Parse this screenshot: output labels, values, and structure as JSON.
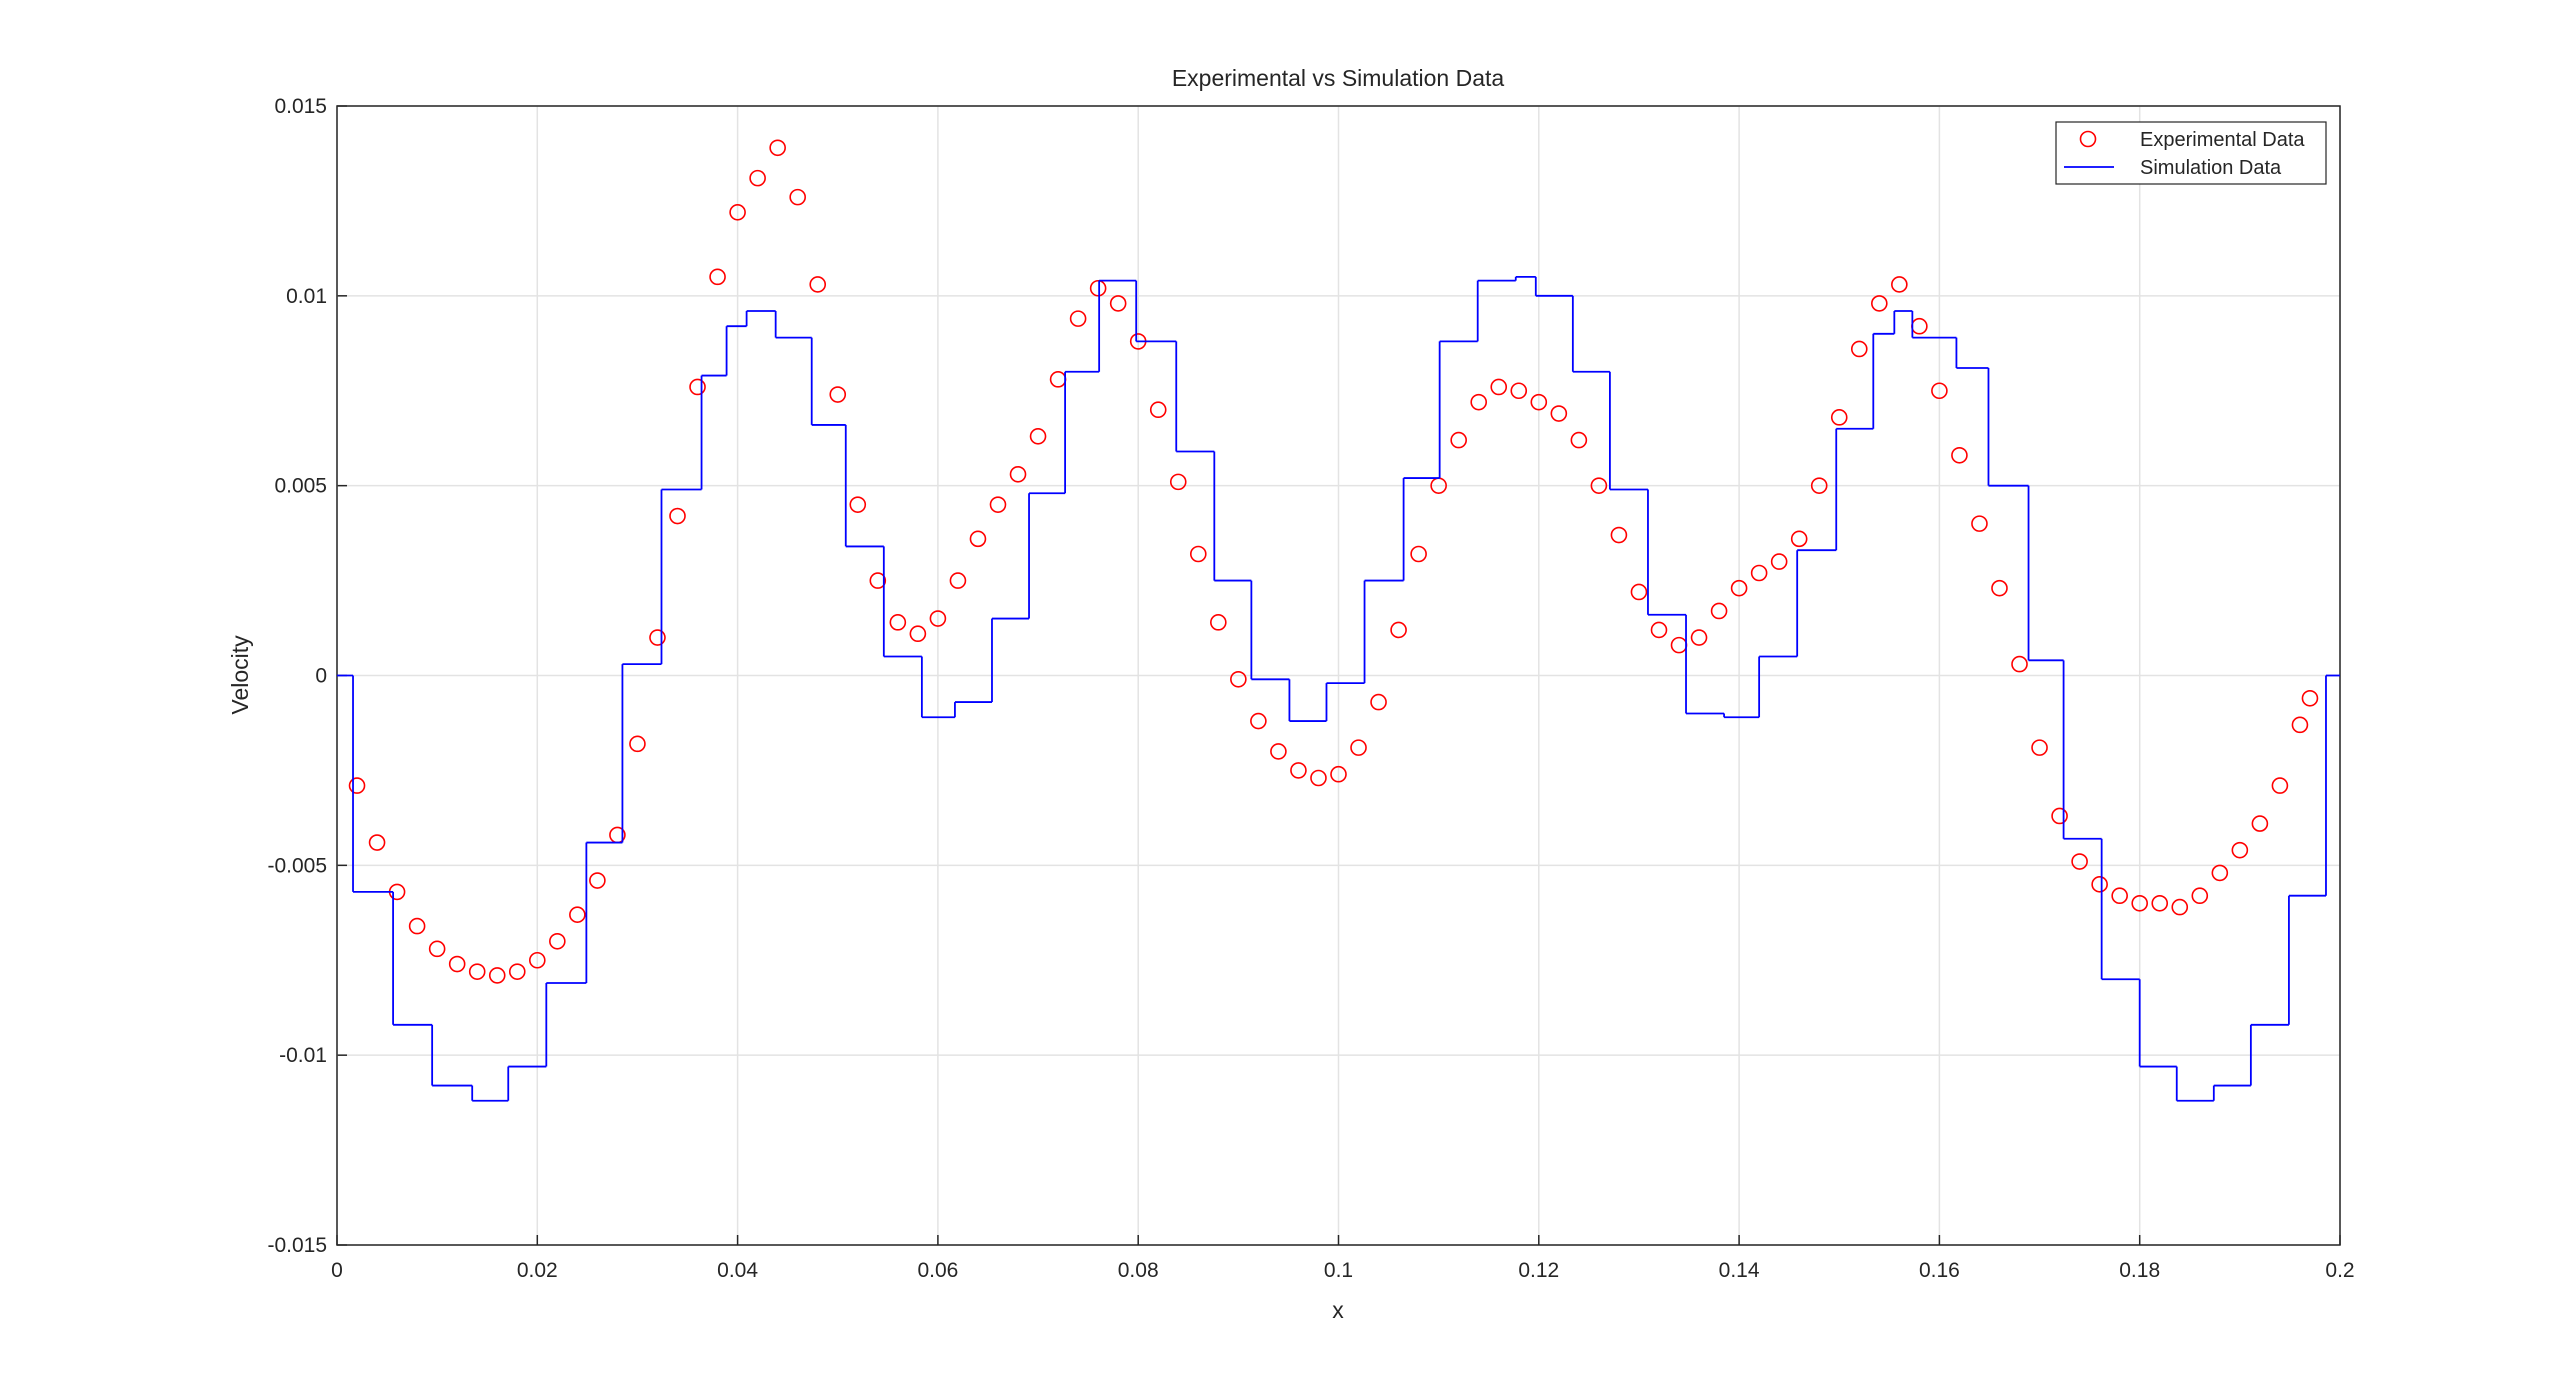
{
  "chart_data": {
    "type": "line",
    "title": "Experimental vs Simulation Data",
    "xlabel": "x",
    "ylabel": "Velocity",
    "xlim": [
      0,
      0.2
    ],
    "ylim": [
      -0.015,
      0.015
    ],
    "xticks": [
      0,
      0.02,
      0.04,
      0.06,
      0.08,
      0.1,
      0.12,
      0.14,
      0.16,
      0.18,
      0.2
    ],
    "yticks": [
      -0.015,
      -0.01,
      -0.005,
      0,
      0.005,
      0.01,
      0.015
    ],
    "grid": true,
    "legend": "northeast",
    "series": [
      {
        "name": "Experimental Data",
        "color": "#ff0000",
        "marker": "circle",
        "x": [
          0.002,
          0.004,
          0.006,
          0.008,
          0.01,
          0.012,
          0.014,
          0.016,
          0.018,
          0.02,
          0.022,
          0.024,
          0.026,
          0.028,
          0.03,
          0.032,
          0.034,
          0.036,
          0.038,
          0.04,
          0.042,
          0.044,
          0.046,
          0.048,
          0.05,
          0.052,
          0.054,
          0.056,
          0.058,
          0.06,
          0.062,
          0.064,
          0.066,
          0.068,
          0.07,
          0.072,
          0.074,
          0.076,
          0.078,
          0.08,
          0.082,
          0.084,
          0.086,
          0.088,
          0.09,
          0.092,
          0.094,
          0.096,
          0.098,
          0.1,
          0.102,
          0.104,
          0.106,
          0.108,
          0.11,
          0.112,
          0.114,
          0.116,
          0.118,
          0.12,
          0.122,
          0.124,
          0.126,
          0.128,
          0.13,
          0.132,
          0.134,
          0.136,
          0.138,
          0.14,
          0.142,
          0.144,
          0.146,
          0.148,
          0.15,
          0.152,
          0.154,
          0.156,
          0.158,
          0.16,
          0.162,
          0.164,
          0.166,
          0.168,
          0.17,
          0.172,
          0.174,
          0.176,
          0.178,
          0.18,
          0.182,
          0.184,
          0.186,
          0.188,
          0.19,
          0.192,
          0.194,
          0.196,
          0.197
        ],
        "values": [
          -0.0029,
          -0.0044,
          -0.0057,
          -0.0066,
          -0.0072,
          -0.0076,
          -0.0078,
          -0.0079,
          -0.0078,
          -0.0075,
          -0.007,
          -0.0063,
          -0.0054,
          -0.0042,
          -0.0018,
          0.001,
          0.0042,
          0.0076,
          0.0105,
          0.0122,
          0.0131,
          0.0139,
          0.0126,
          0.0103,
          0.0074,
          0.0045,
          0.0025,
          0.0014,
          0.0011,
          0.0015,
          0.0025,
          0.0036,
          0.0045,
          0.0053,
          0.0063,
          0.0078,
          0.0094,
          0.0102,
          0.0098,
          0.0088,
          0.007,
          0.0051,
          0.0032,
          0.0014,
          -0.0001,
          -0.0012,
          -0.002,
          -0.0025,
          -0.0027,
          -0.0026,
          -0.0019,
          -0.0007,
          0.0012,
          0.0032,
          0.005,
          0.0062,
          0.0072,
          0.0076,
          0.0075,
          0.0072,
          0.0069,
          0.0062,
          0.005,
          0.0037,
          0.0022,
          0.0012,
          0.0008,
          0.001,
          0.0017,
          0.0023,
          0.0027,
          0.003,
          0.0036,
          0.005,
          0.0068,
          0.0086,
          0.0098,
          0.0103,
          0.0092,
          0.0075,
          0.0058,
          0.004,
          0.0023,
          0.0003,
          -0.0019,
          -0.0037,
          -0.0049,
          -0.0055,
          -0.0058,
          -0.006,
          -0.006,
          -0.0061,
          -0.0058,
          -0.0052,
          -0.0046,
          -0.0039,
          -0.0029,
          -0.0013,
          -0.0006
        ]
      },
      {
        "name": "Simulation Data",
        "color": "#0000ff",
        "step": "post",
        "x": [
          0,
          0.0016,
          0.0056,
          0.0095,
          0.0135,
          0.0171,
          0.0209,
          0.0249,
          0.0285,
          0.0324,
          0.0364,
          0.0389,
          0.0409,
          0.0438,
          0.0474,
          0.0508,
          0.0546,
          0.0584,
          0.0617,
          0.0654,
          0.0691,
          0.0727,
          0.0761,
          0.0798,
          0.0838,
          0.0876,
          0.0913,
          0.0951,
          0.0988,
          0.1026,
          0.1065,
          0.1101,
          0.1139,
          0.1177,
          0.1197,
          0.1234,
          0.1271,
          0.1309,
          0.1347,
          0.1385,
          0.142,
          0.1458,
          0.1497,
          0.1534,
          0.1555,
          0.1573,
          0.1617,
          0.1649,
          0.1689,
          0.1724,
          0.1762,
          0.18,
          0.1837,
          0.1874,
          0.1911,
          0.1949,
          0.1986,
          0.2
        ],
        "values": [
          0,
          -0.0057,
          -0.0092,
          -0.0108,
          -0.0112,
          -0.0103,
          -0.0081,
          -0.0044,
          0.0003,
          0.0049,
          0.0079,
          0.0092,
          0.0096,
          0.0089,
          0.0066,
          0.0034,
          0.0005,
          -0.0011,
          -0.0007,
          0.0015,
          0.0048,
          0.008,
          0.0104,
          0.0088,
          0.0059,
          0.0025,
          -0.0001,
          -0.0012,
          -0.0002,
          0.0025,
          0.0052,
          0.0088,
          0.0104,
          0.0105,
          0.01,
          0.008,
          0.0049,
          0.0016,
          -0.001,
          -0.0011,
          0.0005,
          0.0033,
          0.0065,
          0.009,
          0.0096,
          0.0089,
          0.0081,
          0.005,
          0.0004,
          -0.0043,
          -0.008,
          -0.0103,
          -0.0112,
          -0.0108,
          -0.0092,
          -0.0058,
          0,
          0
        ]
      }
    ]
  }
}
